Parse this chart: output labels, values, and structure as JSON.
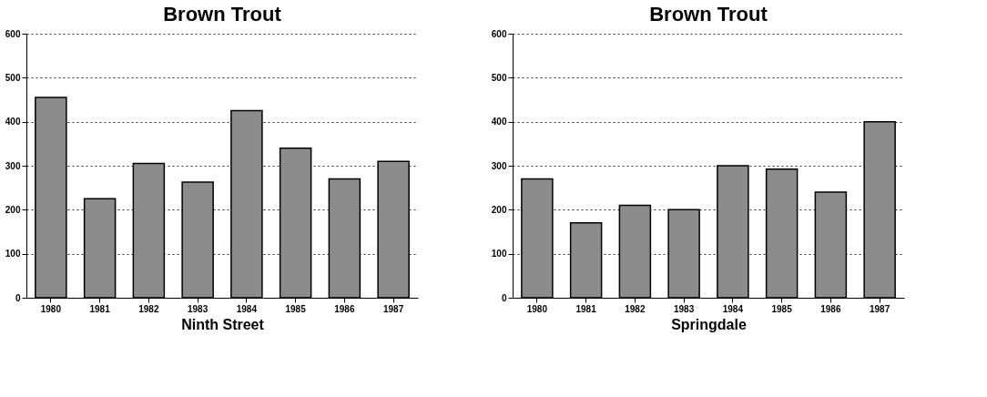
{
  "chart_data": [
    {
      "type": "bar",
      "title": "Brown Trout",
      "xlabel": "Ninth Street",
      "categories": [
        "1980",
        "1981",
        "1982",
        "1983",
        "1984",
        "1985",
        "1986",
        "1987"
      ],
      "values": [
        455,
        225,
        305,
        263,
        425,
        340,
        270,
        310
      ],
      "color": "#8c8c8c",
      "ylim": [
        0,
        600
      ],
      "yticks": [
        0,
        100,
        200,
        300,
        400,
        500,
        600
      ],
      "grid": "y"
    },
    {
      "type": "bar",
      "title": "Brown Trout",
      "xlabel": "Springdale",
      "categories": [
        "1980",
        "1981",
        "1982",
        "1983",
        "1984",
        "1985",
        "1986",
        "1987"
      ],
      "values": [
        270,
        170,
        210,
        200,
        300,
        292,
        240,
        400
      ],
      "color": "#8c8c8c",
      "ylim": [
        0,
        600
      ],
      "yticks": [
        0,
        100,
        200,
        300,
        400,
        500,
        600
      ],
      "grid": "y"
    }
  ]
}
